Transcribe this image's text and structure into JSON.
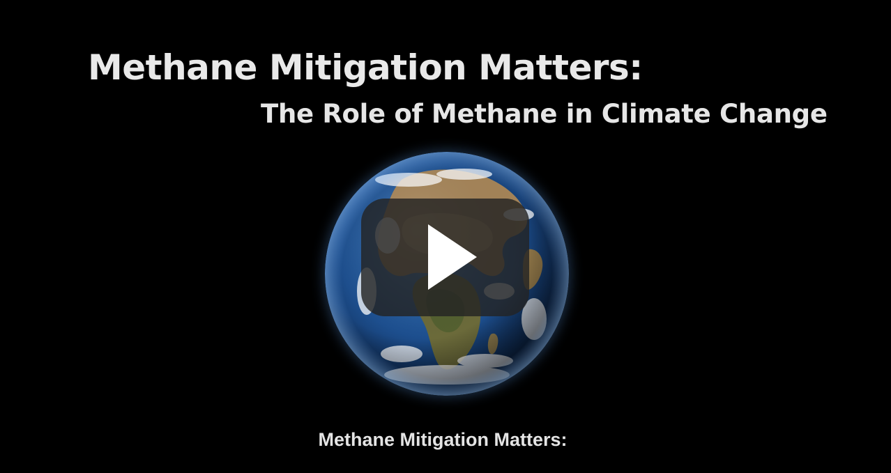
{
  "video": {
    "title_main": "Methane Mitigation Matters:",
    "title_sub": "The Role of Methane in Climate Change",
    "caption": "Methane Mitigation Matters:",
    "play_icon": "play-icon",
    "globe_image": "earth-globe"
  },
  "colors": {
    "background": "#000000",
    "title_text": "#e9e9e9",
    "play_button_bg": "#232323",
    "play_icon": "#ffffff",
    "ocean": "#1d4f8f",
    "land": "#9a7a4f"
  }
}
